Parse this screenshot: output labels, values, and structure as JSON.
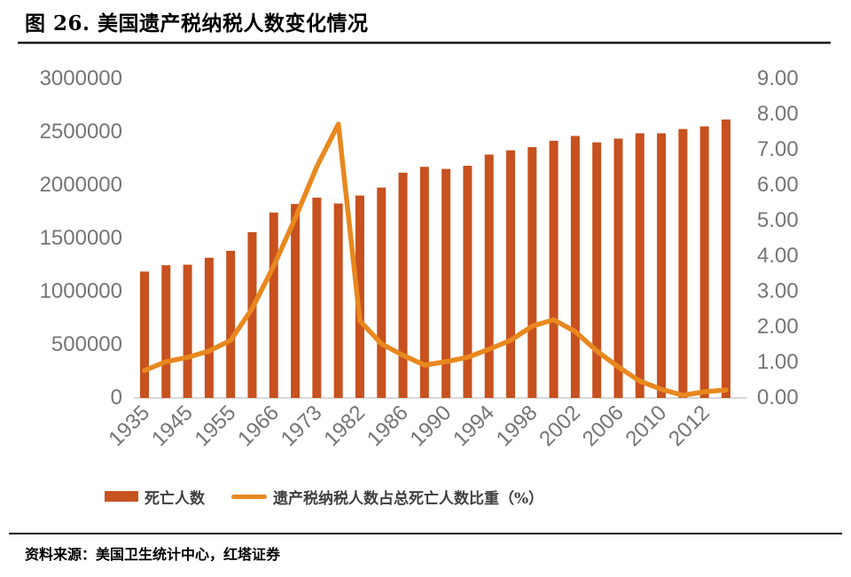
{
  "figure": {
    "title": "图 26.  美国遗产税纳税人数变化情况",
    "source": "资料来源：美国卫生统计中心，红塔证券"
  },
  "colors": {
    "bar": "#C7511F",
    "line": "#E8881E",
    "axis_text": "#757575",
    "baseline": "#D9D9D9",
    "rule": "#141414"
  },
  "legend": [
    {
      "label": "死亡人数",
      "type": "bar",
      "color": "#C7511F"
    },
    {
      "label": "遗产税纳税人数占总死亡人数比重（%）",
      "type": "line",
      "color": "#E8881E"
    }
  ],
  "chart_data": {
    "type": "combo-bar-line",
    "title": "图 26. 美国遗产税纳税人数变化情况",
    "grid": false,
    "legend_position": "bottom",
    "x_tick_labels": [
      "1935",
      "1945",
      "1955",
      "1966",
      "1973",
      "1982",
      "1986",
      "1990",
      "1994",
      "1998",
      "2002",
      "2006",
      "2010",
      "2012"
    ],
    "categories": [
      "1935",
      "",
      "1945",
      "",
      "1955",
      "",
      "1966",
      "",
      "1973",
      "",
      "1982",
      "",
      "1986",
      "",
      "1990",
      "",
      "1994",
      "",
      "1998",
      "",
      "2002",
      "",
      "2006",
      "",
      "2010",
      "",
      "2012",
      ""
    ],
    "series": [
      {
        "name": "死亡人数",
        "type": "bar",
        "axis": "left",
        "color": "#C7511F",
        "values": [
          1180000,
          1240000,
          1245000,
          1310000,
          1375000,
          1550000,
          1735000,
          1815000,
          1875000,
          1820000,
          1895000,
          1970000,
          2110000,
          2165000,
          2145000,
          2175000,
          2280000,
          2320000,
          2350000,
          2410000,
          2455000,
          2395000,
          2430000,
          2480000,
          2480000,
          2520000,
          2545000,
          2610000
        ]
      },
      {
        "name": "遗产税纳税人数占总死亡人数比重（%）",
        "type": "line",
        "axis": "right",
        "color": "#E8881E",
        "values": [
          0.75,
          1.0,
          1.12,
          1.3,
          1.6,
          2.5,
          3.7,
          5.05,
          6.5,
          7.7,
          2.15,
          1.5,
          1.18,
          0.9,
          1.0,
          1.12,
          1.35,
          1.6,
          2.0,
          2.18,
          1.85,
          1.3,
          0.85,
          0.45,
          0.22,
          0.05,
          0.15,
          0.2
        ]
      }
    ],
    "left_axis": {
      "min": 0,
      "max": 3000000,
      "step": 500000,
      "ticks": [
        "0",
        "500000",
        "1000000",
        "1500000",
        "2000000",
        "2500000",
        "3000000"
      ]
    },
    "right_axis": {
      "min": 0,
      "max": 9,
      "step": 1,
      "ticks": [
        "0.00",
        "1.00",
        "2.00",
        "3.00",
        "4.00",
        "5.00",
        "6.00",
        "7.00",
        "8.00",
        "9.00"
      ]
    }
  }
}
